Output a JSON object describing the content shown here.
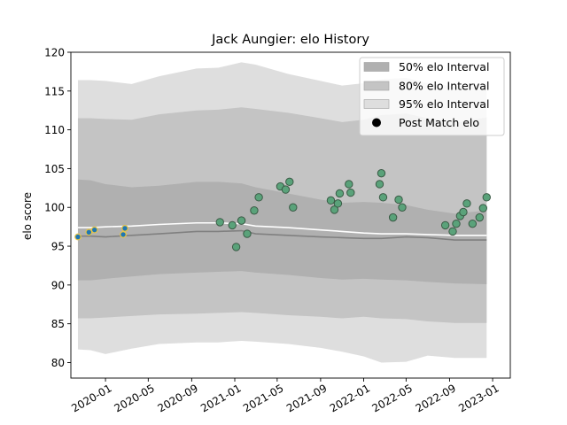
{
  "chart_data": {
    "type": "line",
    "title": "Jack Aungier: elo History",
    "xlabel": "",
    "ylabel": "elo score",
    "ylim": [
      78,
      120
    ],
    "xlim": [
      "2019-09-25",
      "2023-02-20"
    ],
    "yticks": [
      80,
      85,
      90,
      95,
      100,
      105,
      110,
      115,
      120
    ],
    "xticks": [
      "2020-01",
      "2020-05",
      "2020-09",
      "2021-01",
      "2021-05",
      "2021-09",
      "2022-01",
      "2022-05",
      "2022-09",
      "2023-01"
    ],
    "grid": false,
    "legend_position": "top-right",
    "legend": [
      {
        "label": "50% elo Interval",
        "color": "#b0b0b0"
      },
      {
        "label": "80% elo Interval",
        "color": "#c4c4c4"
      },
      {
        "label": "95% elo Interval",
        "color": "#dedede"
      },
      {
        "label": "Post Match elo",
        "color": "#000000"
      }
    ],
    "bands": {
      "x": [
        "2019-10-15",
        "2019-11-20",
        "2020-01-01",
        "2020-03-15",
        "2020-06-01",
        "2020-09-15",
        "2020-11-15",
        "2021-01-20",
        "2021-03-01",
        "2021-06-01",
        "2021-09-01",
        "2021-11-01",
        "2022-01-01",
        "2022-02-20",
        "2022-05-01",
        "2022-07-01",
        "2022-09-15",
        "2022-12-15"
      ],
      "ci95_upper": [
        116.4,
        116.4,
        116.3,
        115.9,
        116.9,
        117.9,
        118.0,
        118.7,
        118.4,
        117.2,
        116.3,
        115.7,
        116.0,
        116.5,
        116.7,
        116.0,
        115.6,
        116.0
      ],
      "ci80_upper": [
        111.5,
        111.5,
        111.4,
        111.3,
        112.0,
        112.5,
        112.6,
        112.9,
        112.7,
        112.2,
        111.5,
        111.0,
        111.3,
        111.9,
        112.1,
        111.5,
        110.9,
        111.6
      ],
      "ci50_upper": [
        103.6,
        103.5,
        103.0,
        102.6,
        102.8,
        103.3,
        103.3,
        103.1,
        102.6,
        101.8,
        101.0,
        100.6,
        100.7,
        100.6,
        100.3,
        99.7,
        99.2,
        99.6
      ],
      "ci50_lower": [
        90.6,
        90.6,
        90.8,
        91.1,
        91.4,
        91.6,
        91.7,
        91.8,
        91.6,
        91.3,
        90.9,
        90.7,
        90.8,
        90.7,
        90.6,
        90.4,
        90.2,
        90.1
      ],
      "ci80_lower": [
        85.7,
        85.7,
        85.8,
        86.0,
        86.2,
        86.3,
        86.4,
        86.5,
        86.4,
        86.1,
        85.9,
        85.7,
        85.9,
        85.7,
        85.6,
        85.3,
        85.1,
        85.1
      ],
      "ci95_lower": [
        81.7,
        81.6,
        81.1,
        81.8,
        82.4,
        82.6,
        82.6,
        82.8,
        82.7,
        82.4,
        81.9,
        81.4,
        80.8,
        80.0,
        80.1,
        80.9,
        80.6,
        80.6
      ],
      "median": [
        96.3,
        96.3,
        96.2,
        96.4,
        96.6,
        96.9,
        96.9,
        97.0,
        96.6,
        96.4,
        96.2,
        96.1,
        96.0,
        96.0,
        96.2,
        96.1,
        95.8,
        95.8
      ],
      "mean": [
        97.4,
        97.4,
        97.5,
        97.6,
        97.8,
        98.0,
        98.0,
        97.9,
        97.6,
        97.4,
        97.1,
        96.9,
        96.7,
        96.6,
        96.6,
        96.5,
        96.4,
        96.4
      ]
    },
    "series": [
      {
        "x": [
          "2019-10-15",
          "2019-11-15",
          "2019-12-01",
          "2020-02-20",
          "2020-02-25",
          "2020-11-20",
          "2020-12-25",
          "2021-01-05",
          "2021-01-20",
          "2021-02-05",
          "2021-02-25",
          "2021-03-10",
          "2021-05-10",
          "2021-05-25",
          "2021-06-05",
          "2021-06-15",
          "2021-09-30",
          "2021-10-10",
          "2021-10-20",
          "2021-10-25",
          "2021-11-20",
          "2021-11-25",
          "2022-02-15",
          "2022-02-20",
          "2022-02-25",
          "2022-03-25",
          "2022-04-10",
          "2022-04-20",
          "2022-08-20",
          "2022-09-10",
          "2022-09-20",
          "2022-10-01",
          "2022-10-10",
          "2022-10-20",
          "2022-11-05",
          "2022-11-25",
          "2022-12-05",
          "2022-12-15"
        ],
        "values": [
          96.2,
          96.8,
          97.1,
          96.5,
          97.3,
          98.1,
          97.7,
          94.9,
          98.3,
          96.6,
          99.6,
          101.3,
          102.7,
          102.3,
          103.3,
          100.0,
          100.9,
          99.7,
          100.5,
          101.8,
          103.0,
          101.9,
          103.0,
          104.4,
          101.3,
          98.7,
          101.0,
          100.0,
          97.7,
          96.9,
          97.9,
          98.9,
          99.4,
          100.5,
          97.9,
          98.7,
          99.9,
          101.3
        ]
      }
    ]
  }
}
